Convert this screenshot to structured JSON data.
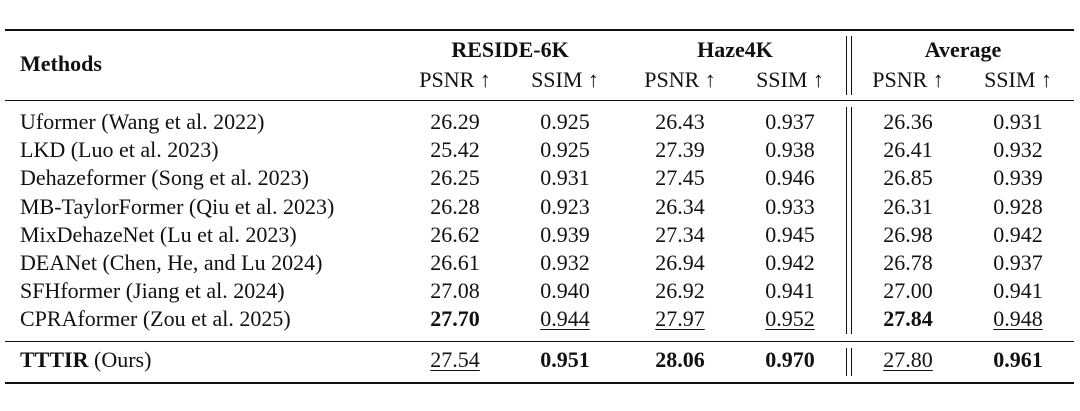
{
  "table": {
    "header": {
      "methods": "Methods",
      "groups": [
        "RESIDE-6K",
        "Haze4K",
        "Average"
      ],
      "metrics": [
        "PSNR ↑",
        "SSIM ↑",
        "PSNR ↑",
        "SSIM ↑",
        "PSNR ↑",
        "SSIM ↑"
      ]
    },
    "rows": [
      {
        "method": "Uformer (Wang et al. 2022)",
        "cells": [
          "26.29",
          "0.925",
          "26.43",
          "0.937",
          "26.36",
          "0.931"
        ]
      },
      {
        "method": "LKD (Luo et al. 2023)",
        "cells": [
          "25.42",
          "0.925",
          "27.39",
          "0.938",
          "26.41",
          "0.932"
        ]
      },
      {
        "method": "Dehazeformer (Song et al. 2023)",
        "cells": [
          "26.25",
          "0.931",
          "27.45",
          "0.946",
          "26.85",
          "0.939"
        ]
      },
      {
        "method": "MB-TaylorFormer (Qiu et al. 2023)",
        "cells": [
          "26.28",
          "0.923",
          "26.34",
          "0.933",
          "26.31",
          "0.928"
        ]
      },
      {
        "method": "MixDehazeNet (Lu et al. 2023)",
        "cells": [
          "26.62",
          "0.939",
          "27.34",
          "0.945",
          "26.98",
          "0.942"
        ]
      },
      {
        "method": "DEANet (Chen, He, and Lu 2024)",
        "cells": [
          "26.61",
          "0.932",
          "26.94",
          "0.942",
          "26.78",
          "0.937"
        ]
      },
      {
        "method": "SFHformer (Jiang et al. 2024)",
        "cells": [
          "27.08",
          "0.940",
          "26.92",
          "0.941",
          "27.00",
          "0.941"
        ]
      },
      {
        "method": "CPRAformer (Zou et al. 2025)",
        "cells": [
          "27.70",
          "0.944",
          "27.97",
          "0.952",
          "27.84",
          "0.948"
        ]
      }
    ],
    "ours": {
      "name": "TTTIR",
      "suffix": "(Ours)",
      "cells": [
        "27.54",
        "0.951",
        "28.06",
        "0.970",
        "27.80",
        "0.961"
      ]
    }
  }
}
